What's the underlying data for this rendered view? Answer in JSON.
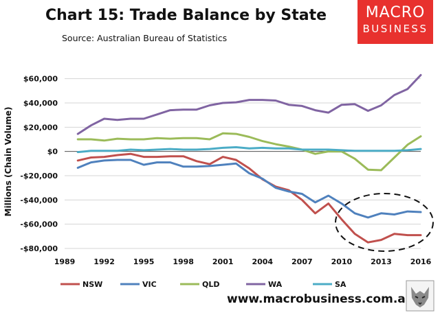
{
  "header": {
    "title": "Chart 15: Trade Balance by State",
    "source": "Source: Australian Bureau of Statistics"
  },
  "logo": {
    "line1": "MACRO",
    "line2": "BUSINESS",
    "color": "#e8312e"
  },
  "footer": {
    "website": "www.macrobusiness.com.au"
  },
  "chart_data": {
    "type": "line",
    "title": "Chart 15: Trade Balance by State",
    "xlabel": "",
    "ylabel": "Millions (Chain Volume)",
    "xlim": [
      1989,
      2016
    ],
    "ylim": [
      -80000,
      70000
    ],
    "x_ticks": [
      1989,
      1992,
      1995,
      1998,
      2001,
      2004,
      2007,
      2010,
      2013,
      2016
    ],
    "x_tick_labels": [
      "1989",
      "1992",
      "1995",
      "1998",
      "2001",
      "2004",
      "2007",
      "2010",
      "2013",
      "2016"
    ],
    "y_ticks": [
      -80000,
      -60000,
      -40000,
      -20000,
      0,
      20000,
      40000,
      60000
    ],
    "y_tick_labels": [
      "-$80,000",
      "-$60,000",
      "-$40,000",
      "-$20,000",
      "$0",
      "$20,000",
      "$40,000",
      "$60,000"
    ],
    "grid": true,
    "legend_position": "bottom",
    "annotation": "dashed ellipse highlighting NSW and VIC 2010-2016",
    "x": [
      1990,
      1991,
      1992,
      1993,
      1994,
      1995,
      1996,
      1997,
      1998,
      1999,
      2000,
      2001,
      2002,
      2003,
      2004,
      2005,
      2006,
      2007,
      2008,
      2009,
      2010,
      2011,
      2012,
      2013,
      2014,
      2015,
      2016
    ],
    "series": [
      {
        "name": "NSW",
        "color": "#c0504d",
        "values": [
          -7500,
          -5000,
          -4500,
          -3000,
          -2000,
          -4500,
          -4500,
          -4000,
          -4000,
          -8000,
          -10500,
          -4500,
          -7000,
          -14000,
          -23000,
          -29000,
          -32000,
          -40000,
          -51000,
          -43000,
          -56000,
          -68000,
          -75000,
          -73000,
          -68000,
          -69000,
          -69000
        ]
      },
      {
        "name": "VIC",
        "color": "#4f81bd",
        "values": [
          -13500,
          -9000,
          -7500,
          -7000,
          -7000,
          -11000,
          -9000,
          -9000,
          -12500,
          -12500,
          -12000,
          -11000,
          -10000,
          -18000,
          -22500,
          -30000,
          -33000,
          -35000,
          -42000,
          -36500,
          -43000,
          -51000,
          -54500,
          -51000,
          -52000,
          -49500,
          -50000
        ]
      },
      {
        "name": "QLD",
        "color": "#9bbb59",
        "values": [
          10000,
          10000,
          9000,
          10500,
          10000,
          10000,
          11000,
          10500,
          11000,
          11000,
          10000,
          15000,
          14500,
          12000,
          8500,
          6000,
          4000,
          1500,
          -2000,
          0,
          0,
          -6000,
          -15000,
          -15500,
          -5000,
          5500,
          12500
        ]
      },
      {
        "name": "WA",
        "color": "#8064a2",
        "values": [
          14500,
          21500,
          27000,
          26000,
          27000,
          27000,
          30500,
          34000,
          34500,
          34500,
          38000,
          40000,
          40500,
          42500,
          42500,
          42000,
          38500,
          37500,
          34000,
          32000,
          38500,
          39000,
          33500,
          38000,
          46500,
          51500,
          63000
        ]
      },
      {
        "name": "SA",
        "color": "#4bacc6",
        "values": [
          -500,
          500,
          500,
          500,
          1500,
          1000,
          1500,
          2000,
          1500,
          1500,
          2000,
          3000,
          3500,
          2500,
          3000,
          2500,
          2500,
          1500,
          1500,
          1500,
          1000,
          500,
          500,
          500,
          500,
          1000,
          2000
        ]
      }
    ]
  }
}
